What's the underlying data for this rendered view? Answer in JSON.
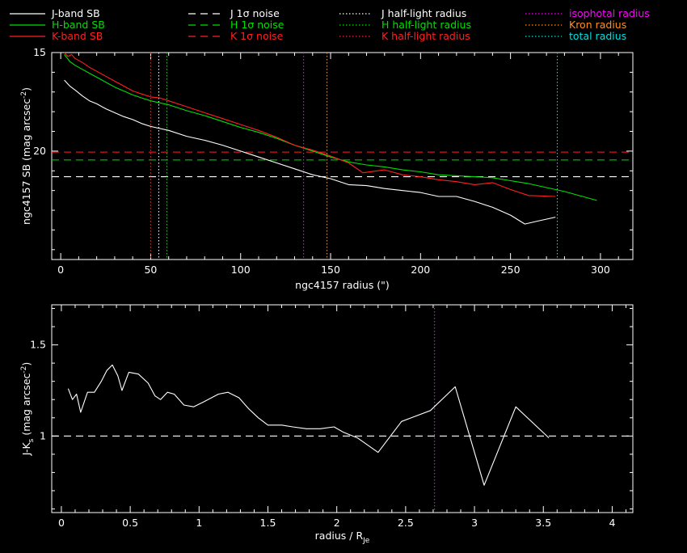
{
  "colors": {
    "background": "#000000",
    "axes": "#ffffff",
    "J": "#ffffff",
    "H": "#00e000",
    "K": "#ff2020",
    "isophotal": "#ff00ff",
    "kron": "#ff9020",
    "total": "#00e0e0"
  },
  "legend": [
    {
      "label": "J-band SB",
      "color": "#ffffff",
      "style": "solid"
    },
    {
      "label": "H-band SB",
      "color": "#00e000",
      "style": "solid"
    },
    {
      "label": "K-band SB",
      "color": "#ff2020",
      "style": "solid"
    },
    {
      "label": "J 1σ noise",
      "color": "#ffffff",
      "style": "dashed"
    },
    {
      "label": "H 1σ noise",
      "color": "#00e000",
      "style": "dashed"
    },
    {
      "label": "K 1σ noise",
      "color": "#ff2020",
      "style": "dashed"
    },
    {
      "label": "J half-light radius",
      "color": "#ffffff",
      "style": "dotted"
    },
    {
      "label": "H half-light radius",
      "color": "#00e000",
      "style": "dotted"
    },
    {
      "label": "K half-light radius",
      "color": "#ff2020",
      "style": "dotted"
    },
    {
      "label": "isophotal radius",
      "color": "#ff00ff",
      "style": "none"
    },
    {
      "label": "Kron radius",
      "color": "#ff9020",
      "style": "none"
    },
    {
      "label": "total radius",
      "color": "#00e0e0",
      "style": "none"
    }
  ],
  "chart_data": [
    {
      "type": "line",
      "xlabel": "ngc4157 radius (\")",
      "ylabel": "ngc4157 SB (mag arcsec",
      "ylabel_sup": "-2",
      "ylabel_end": ")",
      "xlim": [
        -5,
        318
      ],
      "ylim": [
        15,
        25.5
      ],
      "y_inverted": true,
      "x_ticks": [
        0,
        50,
        100,
        150,
        200,
        250,
        300
      ],
      "y_ticks": [
        15,
        20
      ],
      "series": [
        {
          "name": "J-band SB",
          "color": "#ffffff",
          "x": [
            2,
            5,
            8,
            12,
            16,
            20,
            25,
            30,
            35,
            40,
            45,
            50,
            55,
            60,
            70,
            80,
            90,
            100,
            110,
            120,
            130,
            140,
            150,
            160,
            170,
            180,
            190,
            200,
            210,
            220,
            230,
            240,
            250,
            258,
            265,
            275
          ],
          "y": [
            16.4,
            16.7,
            16.9,
            17.2,
            17.45,
            17.6,
            17.85,
            18.05,
            18.25,
            18.4,
            18.6,
            18.75,
            18.85,
            18.95,
            19.25,
            19.45,
            19.7,
            20.0,
            20.3,
            20.6,
            20.9,
            21.2,
            21.4,
            21.7,
            21.75,
            21.9,
            22.0,
            22.1,
            22.3,
            22.3,
            22.55,
            22.85,
            23.25,
            23.7,
            23.55,
            23.35
          ]
        },
        {
          "name": "H-band SB",
          "color": "#00e000",
          "x": [
            2,
            5,
            8,
            12,
            16,
            20,
            25,
            30,
            35,
            40,
            45,
            50,
            55,
            60,
            70,
            80,
            90,
            100,
            110,
            120,
            130,
            140,
            150,
            160,
            170,
            180,
            190,
            200,
            210,
            220,
            230,
            240,
            250,
            260,
            270,
            280,
            290,
            298
          ],
          "y": [
            15.1,
            15.45,
            15.65,
            15.85,
            16.05,
            16.25,
            16.5,
            16.75,
            16.95,
            17.15,
            17.3,
            17.45,
            17.55,
            17.65,
            17.95,
            18.2,
            18.5,
            18.8,
            19.05,
            19.35,
            19.7,
            20.0,
            20.3,
            20.55,
            20.7,
            20.8,
            20.95,
            21.05,
            21.2,
            21.25,
            21.3,
            21.35,
            21.5,
            21.65,
            21.85,
            22.05,
            22.3,
            22.5
          ]
        },
        {
          "name": "K-band SB",
          "color": "#ff2020",
          "x": [
            2,
            4,
            6,
            8,
            12,
            16,
            20,
            25,
            30,
            35,
            40,
            45,
            50,
            55,
            60,
            70,
            80,
            90,
            100,
            110,
            120,
            130,
            140,
            150,
            160,
            168,
            180,
            190,
            200,
            210,
            220,
            230,
            240,
            250,
            260,
            275
          ],
          "y": [
            14.9,
            15.2,
            15.1,
            15.3,
            15.5,
            15.75,
            15.95,
            16.2,
            16.45,
            16.7,
            16.95,
            17.1,
            17.25,
            17.3,
            17.45,
            17.75,
            18.05,
            18.35,
            18.65,
            18.95,
            19.3,
            19.7,
            19.95,
            20.25,
            20.6,
            21.1,
            20.95,
            21.2,
            21.3,
            21.45,
            21.55,
            21.7,
            21.6,
            21.95,
            22.25,
            22.3
          ]
        }
      ],
      "noise_levels": [
        {
          "name": "J 1σ noise",
          "color": "#ffffff",
          "y": 21.3
        },
        {
          "name": "H 1σ noise",
          "color": "#00e000",
          "y": 20.45
        },
        {
          "name": "K 1σ noise",
          "color": "#ff2020",
          "y": 20.05
        }
      ],
      "radius_markers": [
        {
          "name": "K half-light radius",
          "color": "#ff2020",
          "x": 50
        },
        {
          "name": "J half-light radius",
          "color": "#ffffff",
          "x": 54.5
        },
        {
          "name": "H half-light radius",
          "color": "#00e000",
          "x": 59
        },
        {
          "name": "isophotal radius",
          "color": "#ff00ff",
          "x": 135
        },
        {
          "name": "Kron radius",
          "color": "#ff9020",
          "x": 148
        },
        {
          "name": "total radius",
          "color": "#00e0e0",
          "x": 276
        }
      ]
    },
    {
      "type": "line",
      "xlabel": "radius / R",
      "xlabel_sub": "Je",
      "ylabel": "J-K",
      "ylabel_sub": "s",
      "ylabel_mid": " (mag arcsec",
      "ylabel_sup": "-2",
      "ylabel_end": ")",
      "xlim": [
        -0.07,
        4.15
      ],
      "ylim": [
        0.58,
        1.72
      ],
      "x_ticks": [
        0,
        0.5,
        1,
        1.5,
        2,
        2.5,
        3,
        3.5,
        4
      ],
      "y_ticks": [
        1,
        1.5
      ],
      "series": [
        {
          "name": "J-K",
          "color": "#ffffff",
          "x": [
            0.05,
            0.08,
            0.11,
            0.14,
            0.19,
            0.24,
            0.29,
            0.33,
            0.37,
            0.41,
            0.44,
            0.49,
            0.56,
            0.63,
            0.68,
            0.72,
            0.77,
            0.82,
            0.89,
            0.96,
            1.04,
            1.14,
            1.21,
            1.29,
            1.36,
            1.43,
            1.5,
            1.6,
            1.68,
            1.78,
            1.88,
            1.98,
            2.05,
            2.15,
            2.3,
            2.47,
            2.68,
            2.86,
            3.07,
            3.3,
            3.54
          ],
          "y": [
            1.26,
            1.2,
            1.23,
            1.13,
            1.24,
            1.24,
            1.3,
            1.36,
            1.39,
            1.33,
            1.25,
            1.35,
            1.34,
            1.29,
            1.22,
            1.2,
            1.24,
            1.23,
            1.17,
            1.16,
            1.19,
            1.23,
            1.24,
            1.21,
            1.15,
            1.1,
            1.06,
            1.06,
            1.05,
            1.04,
            1.04,
            1.05,
            1.02,
            0.99,
            0.91,
            1.08,
            1.14,
            1.27,
            0.73,
            1.16,
            0.99
          ]
        }
      ],
      "reference_line": {
        "y": 1.0,
        "color": "#ffffff"
      },
      "radius_markers": [
        {
          "name": "isophotal radius",
          "color": "#ff00ff",
          "x": 2.71
        }
      ]
    }
  ]
}
